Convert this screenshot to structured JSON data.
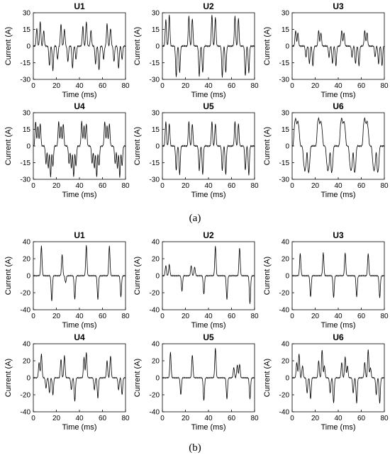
{
  "captions": {
    "a": "(a)",
    "b": "(b)"
  },
  "colors": {
    "trace": "#000000",
    "axis": "#000000",
    "tick_label": "#000000"
  },
  "chart_data": [
    {
      "type": "line",
      "group": "a",
      "title": "U1",
      "xlabel": "Time (ms)",
      "ylabel": "Current (A)",
      "xlim": [
        0,
        80
      ],
      "ylim": [
        -30,
        30
      ],
      "xticks": [
        0,
        20,
        40,
        60,
        80
      ],
      "yticks": [
        30,
        15,
        0,
        -15,
        -30
      ],
      "grid": false,
      "peaks": [
        [
          3,
          16
        ],
        [
          6,
          22
        ],
        [
          9,
          14
        ],
        [
          14,
          -18
        ],
        [
          17,
          -22
        ],
        [
          21,
          -12
        ],
        [
          24,
          20
        ],
        [
          27,
          15
        ],
        [
          30,
          -14
        ],
        [
          34,
          -20
        ],
        [
          37,
          -12
        ],
        [
          43,
          18
        ],
        [
          46,
          22
        ],
        [
          50,
          14
        ],
        [
          54,
          -16
        ],
        [
          57,
          -22
        ],
        [
          61,
          -12
        ],
        [
          64,
          20
        ],
        [
          67,
          16
        ],
        [
          70,
          -14
        ],
        [
          74,
          -20
        ],
        [
          77,
          -12
        ]
      ]
    },
    {
      "type": "line",
      "group": "a",
      "title": "U2",
      "xlabel": "Time (ms)",
      "ylabel": "Current (A)",
      "xlim": [
        0,
        80
      ],
      "ylim": [
        -30,
        30
      ],
      "xticks": [
        0,
        20,
        40,
        60,
        80
      ],
      "yticks": [
        30,
        15,
        0,
        -15,
        -30
      ],
      "grid": false,
      "peaks": [
        [
          3,
          24
        ],
        [
          6,
          28
        ],
        [
          12,
          -28
        ],
        [
          15,
          -24
        ],
        [
          23,
          27
        ],
        [
          26,
          25
        ],
        [
          32,
          -27
        ],
        [
          35,
          -24
        ],
        [
          43,
          28
        ],
        [
          46,
          26
        ],
        [
          52,
          -28
        ],
        [
          55,
          -24
        ],
        [
          63,
          27
        ],
        [
          66,
          25
        ],
        [
          72,
          -27
        ],
        [
          75,
          -24
        ]
      ]
    },
    {
      "type": "line",
      "group": "a",
      "title": "U3",
      "xlabel": "Time (ms)",
      "ylabel": "Current (A)",
      "xlim": [
        0,
        80
      ],
      "ylim": [
        -30,
        30
      ],
      "xticks": [
        0,
        20,
        40,
        60,
        80
      ],
      "yticks": [
        30,
        15,
        0,
        -15,
        -30
      ],
      "grid": false,
      "peaks": [
        [
          3,
          14
        ],
        [
          5,
          12
        ],
        [
          12,
          -10
        ],
        [
          15,
          -16
        ],
        [
          18,
          -18
        ],
        [
          23,
          14
        ],
        [
          25,
          12
        ],
        [
          32,
          -10
        ],
        [
          35,
          -16
        ],
        [
          38,
          -18
        ],
        [
          43,
          14
        ],
        [
          45,
          12
        ],
        [
          52,
          -10
        ],
        [
          55,
          -16
        ],
        [
          58,
          -18
        ],
        [
          63,
          14
        ],
        [
          65,
          12
        ],
        [
          72,
          -10
        ],
        [
          75,
          -16
        ],
        [
          78,
          -18
        ]
      ]
    },
    {
      "type": "line",
      "group": "a",
      "title": "U4",
      "xlabel": "Time (ms)",
      "ylabel": "Current (A)",
      "xlim": [
        0,
        80
      ],
      "ylim": [
        -30,
        30
      ],
      "xticks": [
        0,
        20,
        40,
        60,
        80
      ],
      "yticks": [
        30,
        15,
        0,
        -15,
        -30
      ],
      "grid": false,
      "peaks": [
        [
          2,
          22
        ],
        [
          4,
          18
        ],
        [
          6,
          20
        ],
        [
          11,
          -16
        ],
        [
          13,
          -20
        ],
        [
          15,
          -28
        ],
        [
          17,
          -18
        ],
        [
          22,
          22
        ],
        [
          24,
          18
        ],
        [
          26,
          20
        ],
        [
          31,
          -16
        ],
        [
          33,
          -20
        ],
        [
          35,
          -28
        ],
        [
          37,
          -18
        ],
        [
          42,
          22
        ],
        [
          44,
          18
        ],
        [
          46,
          20
        ],
        [
          51,
          -16
        ],
        [
          53,
          -20
        ],
        [
          55,
          -28
        ],
        [
          57,
          -18
        ],
        [
          62,
          22
        ],
        [
          64,
          18
        ],
        [
          66,
          20
        ],
        [
          71,
          -16
        ],
        [
          73,
          -20
        ],
        [
          75,
          -28
        ],
        [
          77,
          -18
        ]
      ]
    },
    {
      "type": "line",
      "group": "a",
      "title": "U5",
      "xlabel": "Time (ms)",
      "ylabel": "Current (A)",
      "xlim": [
        0,
        80
      ],
      "ylim": [
        -30,
        30
      ],
      "xticks": [
        0,
        20,
        40,
        60,
        80
      ],
      "yticks": [
        30,
        15,
        0,
        -15,
        -30
      ],
      "grid": false,
      "peaks": [
        [
          3,
          22
        ],
        [
          6,
          20
        ],
        [
          12,
          -22
        ],
        [
          15,
          -26
        ],
        [
          23,
          22
        ],
        [
          26,
          20
        ],
        [
          32,
          -22
        ],
        [
          35,
          -26
        ],
        [
          43,
          22
        ],
        [
          46,
          20
        ],
        [
          52,
          -22
        ],
        [
          55,
          -26
        ],
        [
          63,
          22
        ],
        [
          66,
          20
        ],
        [
          72,
          -22
        ],
        [
          75,
          -26
        ]
      ]
    },
    {
      "type": "line",
      "group": "a",
      "title": "U6",
      "xlabel": "Time (ms)",
      "ylabel": "Current (A)",
      "xlim": [
        0,
        80
      ],
      "ylim": [
        -30,
        30
      ],
      "xticks": [
        0,
        20,
        40,
        60,
        80
      ],
      "yticks": [
        30,
        15,
        0,
        -15,
        -30
      ],
      "grid": false,
      "peaks": [
        [
          2,
          15
        ],
        [
          3,
          20
        ],
        [
          4,
          14
        ],
        [
          5,
          18
        ],
        [
          6,
          12
        ],
        [
          10,
          -12
        ],
        [
          11,
          -18
        ],
        [
          12,
          -14
        ],
        [
          14,
          -20
        ],
        [
          15,
          -16
        ],
        [
          22,
          16
        ],
        [
          23,
          20
        ],
        [
          24,
          14
        ],
        [
          25,
          18
        ],
        [
          26,
          12
        ],
        [
          30,
          -12
        ],
        [
          31,
          -18
        ],
        [
          32,
          -14
        ],
        [
          34,
          -20
        ],
        [
          35,
          -16
        ],
        [
          42,
          16
        ],
        [
          43,
          20
        ],
        [
          44,
          14
        ],
        [
          45,
          18
        ],
        [
          46,
          12
        ],
        [
          50,
          -12
        ],
        [
          51,
          -18
        ],
        [
          52,
          -14
        ],
        [
          54,
          -20
        ],
        [
          55,
          -16
        ],
        [
          62,
          16
        ],
        [
          63,
          20
        ],
        [
          64,
          14
        ],
        [
          65,
          18
        ],
        [
          66,
          12
        ],
        [
          70,
          -12
        ],
        [
          71,
          -18
        ],
        [
          72,
          -14
        ],
        [
          74,
          -20
        ],
        [
          75,
          -16
        ]
      ]
    },
    {
      "type": "line",
      "group": "b",
      "title": "U1",
      "xlabel": "Time (ms)",
      "ylabel": "Current (A)",
      "xlim": [
        0,
        80
      ],
      "ylim": [
        -40,
        40
      ],
      "xticks": [
        0,
        20,
        40,
        60,
        80
      ],
      "yticks": [
        40,
        20,
        0,
        -20,
        -40
      ],
      "grid": false,
      "peaks": [
        [
          7,
          35
        ],
        [
          16,
          -30
        ],
        [
          25,
          25
        ],
        [
          28,
          -8
        ],
        [
          36,
          -28
        ],
        [
          46,
          36
        ],
        [
          56,
          -28
        ],
        [
          66,
          35
        ],
        [
          76,
          -25
        ]
      ]
    },
    {
      "type": "line",
      "group": "b",
      "title": "U2",
      "xlabel": "Time (ms)",
      "ylabel": "Current (A)",
      "xlim": [
        0,
        80
      ],
      "ylim": [
        -40,
        40
      ],
      "xticks": [
        0,
        20,
        40,
        60,
        80
      ],
      "yticks": [
        40,
        20,
        0,
        -20,
        -40
      ],
      "grid": false,
      "peaks": [
        [
          3,
          12
        ],
        [
          6,
          13
        ],
        [
          17,
          -18
        ],
        [
          25,
          12
        ],
        [
          28,
          10
        ],
        [
          36,
          -22
        ],
        [
          46,
          35
        ],
        [
          56,
          -28
        ],
        [
          67,
          33
        ],
        [
          76,
          -33
        ]
      ]
    },
    {
      "type": "line",
      "group": "b",
      "title": "U3",
      "xlabel": "Time (ms)",
      "ylabel": "Current (A)",
      "xlim": [
        0,
        80
      ],
      "ylim": [
        -40,
        40
      ],
      "xticks": [
        0,
        20,
        40,
        60,
        80
      ],
      "yticks": [
        40,
        20,
        0,
        -20,
        -40
      ],
      "grid": false,
      "peaks": [
        [
          7,
          26
        ],
        [
          16,
          -25
        ],
        [
          27,
          27
        ],
        [
          36,
          -26
        ],
        [
          46,
          27
        ],
        [
          56,
          -25
        ],
        [
          66,
          26
        ],
        [
          76,
          -26
        ]
      ]
    },
    {
      "type": "line",
      "group": "b",
      "title": "U4",
      "xlabel": "Time (ms)",
      "ylabel": "Current (A)",
      "xlim": [
        0,
        80
      ],
      "ylim": [
        -40,
        40
      ],
      "xticks": [
        0,
        20,
        40,
        60,
        80
      ],
      "yticks": [
        40,
        20,
        0,
        -20,
        -40
      ],
      "grid": false,
      "peaks": [
        [
          5,
          18
        ],
        [
          7,
          28
        ],
        [
          11,
          -12
        ],
        [
          14,
          -18
        ],
        [
          17,
          -20
        ],
        [
          24,
          22
        ],
        [
          27,
          26
        ],
        [
          33,
          -14
        ],
        [
          36,
          -28
        ],
        [
          44,
          24
        ],
        [
          46,
          30
        ],
        [
          53,
          -14
        ],
        [
          56,
          -24
        ],
        [
          64,
          20
        ],
        [
          67,
          26
        ],
        [
          74,
          -14
        ],
        [
          77,
          -20
        ]
      ]
    },
    {
      "type": "line",
      "group": "b",
      "title": "U5",
      "xlabel": "Time (ms)",
      "ylabel": "Current (A)",
      "xlim": [
        0,
        80
      ],
      "ylim": [
        -40,
        40
      ],
      "xticks": [
        0,
        20,
        40,
        60,
        80
      ],
      "yticks": [
        40,
        20,
        0,
        -20,
        -40
      ],
      "grid": false,
      "peaks": [
        [
          7,
          30
        ],
        [
          16,
          -20
        ],
        [
          26,
          27
        ],
        [
          36,
          -27
        ],
        [
          46,
          35
        ],
        [
          56,
          -25
        ],
        [
          62,
          12
        ],
        [
          65,
          15
        ],
        [
          67,
          16
        ],
        [
          76,
          -25
        ]
      ]
    },
    {
      "type": "line",
      "group": "b",
      "title": "U6",
      "xlabel": "Time (ms)",
      "ylabel": "Current (A)",
      "xlim": [
        0,
        80
      ],
      "ylim": [
        -40,
        40
      ],
      "xticks": [
        0,
        20,
        40,
        60,
        80
      ],
      "yticks": [
        40,
        20,
        0,
        -20,
        -40
      ],
      "grid": false,
      "peaks": [
        [
          4,
          18
        ],
        [
          6,
          28
        ],
        [
          9,
          14
        ],
        [
          13,
          -18
        ],
        [
          16,
          -25
        ],
        [
          23,
          20
        ],
        [
          26,
          33
        ],
        [
          28,
          14
        ],
        [
          33,
          -18
        ],
        [
          36,
          -30
        ],
        [
          43,
          18
        ],
        [
          46,
          25
        ],
        [
          48,
          14
        ],
        [
          53,
          -18
        ],
        [
          56,
          -30
        ],
        [
          63,
          18
        ],
        [
          66,
          33
        ],
        [
          68,
          12
        ],
        [
          73,
          -20
        ],
        [
          76,
          -30
        ]
      ]
    }
  ]
}
